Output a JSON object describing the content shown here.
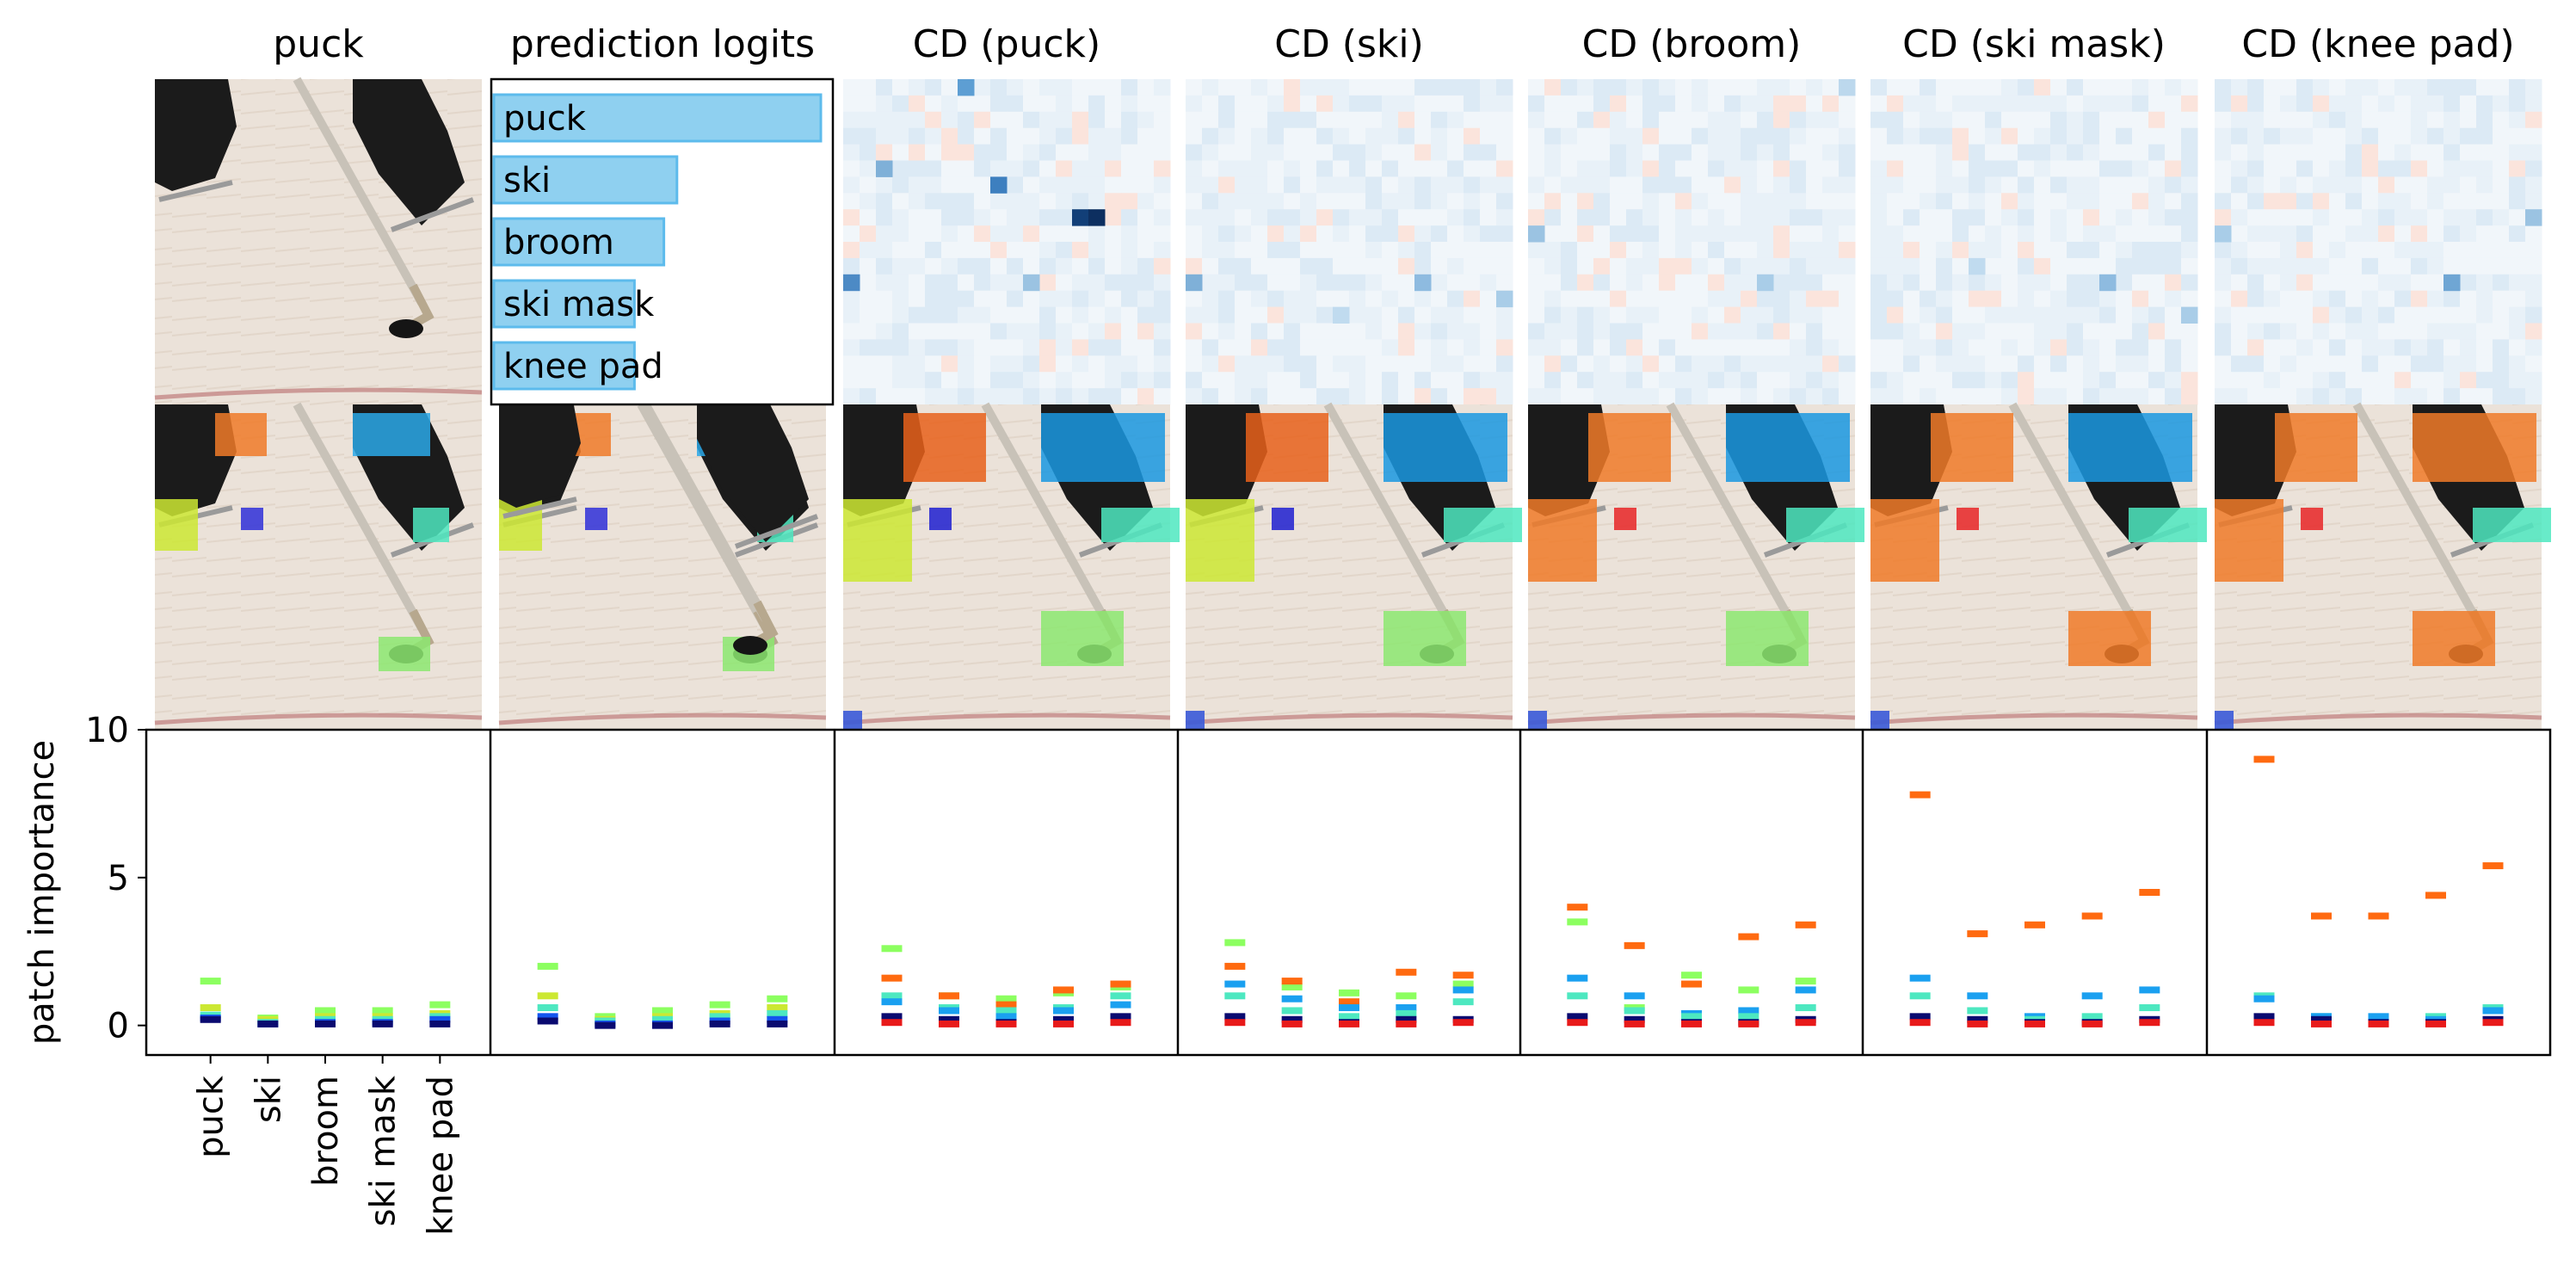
{
  "figure": {
    "column_titles": [
      "puck",
      "prediction logits",
      "CD (puck)",
      "CD (ski)",
      "CD (broom)",
      "CD (ski mask)",
      "CD (knee pad)"
    ],
    "x_tick_labels": [
      "puck",
      "ski",
      "broom",
      "ski mask",
      "knee pad"
    ],
    "ylabel": "patch importance",
    "y_ticks": [
      "10",
      "5",
      "0"
    ]
  },
  "colors": {
    "logit_bar_fill": "#8fd0f0",
    "logit_bar_edge": "#5dbbec",
    "ice": "#e9dfd6",
    "ice_line": "#b86a6a",
    "skate": "#1b1b1b",
    "stick": "#c8c2b8",
    "puck": "#151515"
  },
  "chart_data": [
    {
      "type": "bar",
      "orientation": "horizontal",
      "title": "prediction logits",
      "categories": [
        "puck",
        "ski",
        "broom",
        "ski mask",
        "knee pad"
      ],
      "values": [
        1.0,
        0.56,
        0.52,
        0.43,
        0.43
      ]
    },
    {
      "type": "scatter",
      "title": "puck",
      "ylabel": "patch importance",
      "ylim": [
        -1,
        10
      ],
      "categories": [
        "puck",
        "ski",
        "broom",
        "ski mask",
        "knee pad"
      ],
      "series": [
        {
          "color": "#8cff60",
          "values": [
            1.5,
            0.25,
            0.5,
            0.5,
            0.7
          ]
        },
        {
          "color": "#cce832",
          "values": [
            0.6,
            0.2,
            0.3,
            0.3,
            0.4
          ]
        },
        {
          "color": "#4de8c0",
          "values": [
            0.35,
            0.1,
            0.2,
            0.2,
            0.3
          ]
        },
        {
          "color": "#1555ee",
          "values": [
            0.25,
            0.05,
            0.1,
            0.1,
            0.2
          ]
        },
        {
          "color": "#0a0a70",
          "values": [
            0.2,
            0.05,
            0.05,
            0.05,
            0.05
          ]
        }
      ]
    },
    {
      "type": "scatter",
      "title": "prediction logits",
      "ylim": [
        -1,
        10
      ],
      "categories": [
        "puck",
        "ski",
        "broom",
        "ski mask",
        "knee pad"
      ],
      "series": [
        {
          "color": "#8cff60",
          "values": [
            2.0,
            0.3,
            0.5,
            0.7,
            0.9
          ]
        },
        {
          "color": "#cce832",
          "values": [
            1.0,
            0.2,
            0.3,
            0.4,
            0.6
          ]
        },
        {
          "color": "#4de8c0",
          "values": [
            0.6,
            0.15,
            0.2,
            0.3,
            0.4
          ]
        },
        {
          "color": "#1555ee",
          "values": [
            0.3,
            0.05,
            0.05,
            0.15,
            0.2
          ]
        },
        {
          "color": "#0a0a70",
          "values": [
            0.15,
            0.0,
            0.0,
            0.05,
            0.05
          ]
        }
      ]
    },
    {
      "type": "scatter",
      "title": "CD (puck)",
      "ylim": [
        -1,
        10
      ],
      "categories": [
        "puck",
        "ski",
        "broom",
        "ski mask",
        "knee pad"
      ],
      "series": [
        {
          "color": "#8cff60",
          "values": [
            2.6,
            1.0,
            0.9,
            1.1,
            1.3
          ]
        },
        {
          "color": "#ff6a10",
          "values": [
            1.6,
            1.0,
            0.7,
            1.2,
            1.4
          ]
        },
        {
          "color": "#4de8c0",
          "values": [
            1.0,
            0.6,
            0.5,
            0.6,
            1.0
          ]
        },
        {
          "color": "#1aa0f0",
          "values": [
            0.8,
            0.5,
            0.3,
            0.5,
            0.7
          ]
        },
        {
          "color": "#0a0a70",
          "values": [
            0.3,
            0.2,
            0.1,
            0.2,
            0.3
          ]
        },
        {
          "color": "#e81a1a",
          "values": [
            0.1,
            0.05,
            0.05,
            0.05,
            0.1
          ]
        }
      ]
    },
    {
      "type": "scatter",
      "title": "CD (ski)",
      "ylim": [
        -1,
        10
      ],
      "categories": [
        "puck",
        "ski",
        "broom",
        "ski mask",
        "knee pad"
      ],
      "series": [
        {
          "color": "#8cff60",
          "values": [
            2.8,
            1.3,
            1.1,
            1.0,
            1.4
          ]
        },
        {
          "color": "#ff6a10",
          "values": [
            2.0,
            1.5,
            0.8,
            1.8,
            1.7
          ]
        },
        {
          "color": "#1aa0f0",
          "values": [
            1.4,
            0.9,
            0.6,
            0.6,
            1.2
          ]
        },
        {
          "color": "#4de8c0",
          "values": [
            1.0,
            0.5,
            0.3,
            0.4,
            0.8
          ]
        },
        {
          "color": "#0a0a70",
          "values": [
            0.3,
            0.2,
            0.1,
            0.2,
            0.2
          ]
        },
        {
          "color": "#e81a1a",
          "values": [
            0.1,
            0.05,
            0.05,
            0.05,
            0.1
          ]
        }
      ]
    },
    {
      "type": "scatter",
      "title": "CD (broom)",
      "ylim": [
        -1,
        10
      ],
      "categories": [
        "puck",
        "ski",
        "broom",
        "ski mask",
        "knee pad"
      ],
      "series": [
        {
          "color": "#ff6a10",
          "values": [
            4.0,
            2.7,
            1.4,
            3.0,
            3.4
          ]
        },
        {
          "color": "#8cff60",
          "values": [
            3.5,
            0.6,
            1.7,
            1.2,
            1.5
          ]
        },
        {
          "color": "#1aa0f0",
          "values": [
            1.6,
            1.0,
            0.4,
            0.5,
            1.2
          ]
        },
        {
          "color": "#4de8c0",
          "values": [
            1.0,
            0.5,
            0.3,
            0.3,
            0.6
          ]
        },
        {
          "color": "#0a0a70",
          "values": [
            0.3,
            0.2,
            0.1,
            0.1,
            0.2
          ]
        },
        {
          "color": "#e81a1a",
          "values": [
            0.1,
            0.05,
            0.05,
            0.05,
            0.1
          ]
        }
      ]
    },
    {
      "type": "scatter",
      "title": "CD (ski mask)",
      "ylim": [
        -1,
        10
      ],
      "categories": [
        "puck",
        "ski",
        "broom",
        "ski mask",
        "knee pad"
      ],
      "series": [
        {
          "color": "#ff6a10",
          "values": [
            7.8,
            3.1,
            3.4,
            3.7,
            4.5
          ]
        },
        {
          "color": "#1aa0f0",
          "values": [
            1.6,
            1.0,
            0.3,
            1.0,
            1.2
          ]
        },
        {
          "color": "#4de8c0",
          "values": [
            1.0,
            0.5,
            0.2,
            0.3,
            0.6
          ]
        },
        {
          "color": "#0a0a70",
          "values": [
            0.3,
            0.2,
            0.1,
            0.1,
            0.2
          ]
        },
        {
          "color": "#e81a1a",
          "values": [
            0.1,
            0.05,
            0.05,
            0.05,
            0.1
          ]
        }
      ]
    },
    {
      "type": "scatter",
      "title": "CD (knee pad)",
      "ylim": [
        -1,
        10
      ],
      "categories": [
        "puck",
        "ski",
        "broom",
        "ski mask",
        "knee pad"
      ],
      "series": [
        {
          "color": "#ff6a10",
          "values": [
            9.0,
            3.7,
            3.7,
            4.4,
            5.4
          ]
        },
        {
          "color": "#4de8c0",
          "values": [
            1.0,
            0.3,
            0.2,
            0.3,
            0.6
          ]
        },
        {
          "color": "#1aa0f0",
          "values": [
            0.9,
            0.3,
            0.3,
            0.2,
            0.5
          ]
        },
        {
          "color": "#0a0a70",
          "values": [
            0.3,
            0.2,
            0.1,
            0.1,
            0.2
          ]
        },
        {
          "color": "#e81a1a",
          "values": [
            0.1,
            0.05,
            0.05,
            0.05,
            0.1
          ]
        }
      ]
    }
  ]
}
